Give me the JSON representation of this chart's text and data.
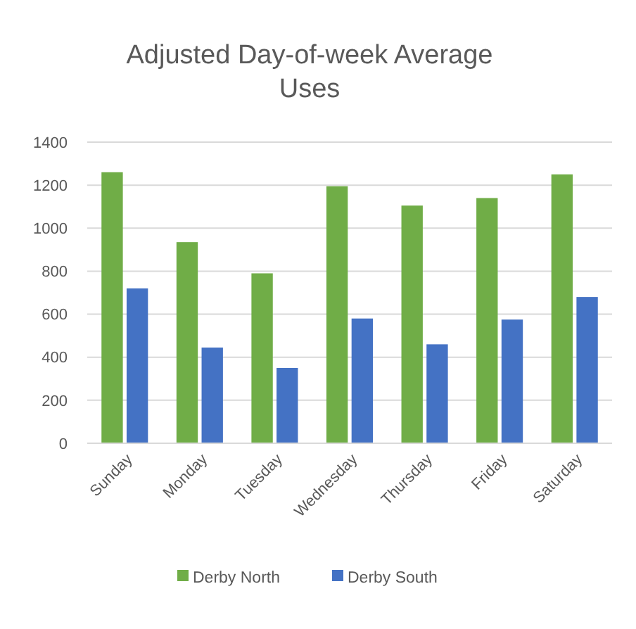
{
  "chart_data": {
    "type": "bar",
    "title": "Adjusted Day-of-week Average Uses",
    "categories": [
      "Sunday",
      "Monday",
      "Tuesday",
      "Wednesday",
      "Thursday",
      "Friday",
      "Saturday"
    ],
    "series": [
      {
        "name": "Derby North",
        "color": "#70ad47",
        "values": [
          1260,
          935,
          790,
          1195,
          1105,
          1140,
          1250
        ]
      },
      {
        "name": "Derby South",
        "color": "#4472c4",
        "values": [
          720,
          445,
          350,
          580,
          460,
          575,
          680
        ]
      }
    ],
    "ylim": [
      0,
      1400
    ],
    "yticks": [
      0,
      200,
      400,
      600,
      800,
      1000,
      1200,
      1400
    ],
    "grid": "y",
    "legend": "bottom"
  }
}
